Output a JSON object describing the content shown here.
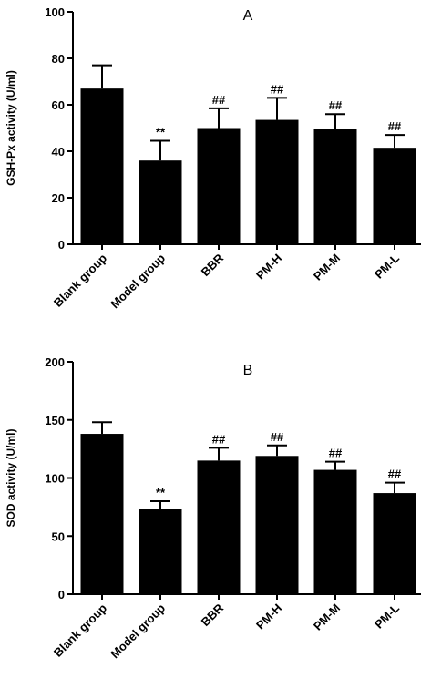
{
  "chart_data": [
    {
      "type": "bar",
      "panel_label": "A",
      "ylabel": "GSH-Px activity (U/ml)",
      "ylim": [
        0,
        100
      ],
      "yticks": [
        0,
        20,
        40,
        60,
        80,
        100
      ],
      "categories": [
        "Blank group",
        "Model group",
        "BBR",
        "PM-H",
        "PM-M",
        "PM-L"
      ],
      "values": [
        67,
        36,
        50,
        53.5,
        49.5,
        41.5
      ],
      "error_plus": [
        10,
        8.5,
        8.5,
        9.5,
        6.5,
        5.5
      ],
      "significance": [
        "",
        "**",
        "##",
        "##",
        "##",
        "##"
      ]
    },
    {
      "type": "bar",
      "panel_label": "B",
      "ylabel": "SOD activity (U/ml)",
      "ylim": [
        0,
        200
      ],
      "yticks": [
        0,
        50,
        100,
        150,
        200
      ],
      "categories": [
        "Blank group",
        "Model group",
        "BBR",
        "PM-H",
        "PM-M",
        "PM-L"
      ],
      "values": [
        138,
        73,
        115,
        119,
        107,
        87
      ],
      "error_plus": [
        10,
        7,
        11,
        9,
        7,
        9
      ],
      "significance": [
        "",
        "**",
        "##",
        "##",
        "##",
        "##"
      ]
    }
  ]
}
